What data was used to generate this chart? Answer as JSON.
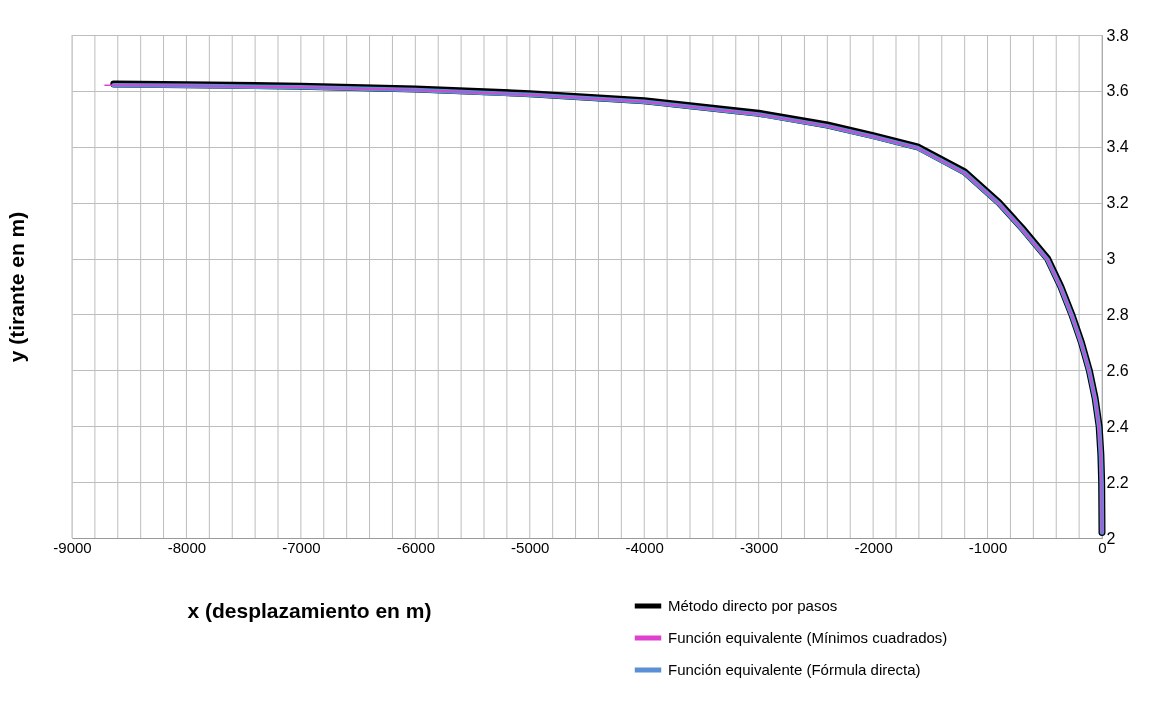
{
  "chart_data": {
    "type": "line",
    "xlabel": "x (desplazamiento en m)",
    "ylabel": "y (tirante en m)",
    "xlim": [
      -9000,
      0
    ],
    "xticks": [
      -9000,
      {
        "value": -8800,
        "label": null
      },
      {
        "value": -8600,
        "label": null
      },
      {
        "value": -8400,
        "label": null
      },
      {
        "value": -8200,
        "label": null
      },
      -8000,
      {
        "value": -7800,
        "label": null
      },
      {
        "value": -7600,
        "label": null
      },
      {
        "value": -7400,
        "label": null
      },
      {
        "value": -7200,
        "label": null
      },
      -7000,
      {
        "value": -6800,
        "label": null
      },
      {
        "value": -6600,
        "label": null
      },
      {
        "value": -6400,
        "label": null
      },
      {
        "value": -6200,
        "label": null
      },
      -6000,
      {
        "value": -5800,
        "label": null
      },
      {
        "value": -5600,
        "label": null
      },
      {
        "value": -5400,
        "label": null
      },
      {
        "value": -5200,
        "label": null
      },
      -5000,
      {
        "value": -4800,
        "label": null
      },
      {
        "value": -4600,
        "label": null
      },
      {
        "value": -4400,
        "label": null
      },
      {
        "value": -4200,
        "label": null
      },
      -4000,
      {
        "value": -3800,
        "label": null
      },
      {
        "value": -3600,
        "label": null
      },
      {
        "value": -3400,
        "label": null
      },
      {
        "value": -3200,
        "label": null
      },
      -3000,
      {
        "value": -2800,
        "label": null
      },
      {
        "value": -2600,
        "label": null
      },
      {
        "value": -2400,
        "label": null
      },
      {
        "value": -2200,
        "label": null
      },
      -2000,
      {
        "value": -1800,
        "label": null
      },
      {
        "value": -1600,
        "label": null
      },
      {
        "value": -1400,
        "label": null
      },
      {
        "value": -1200,
        "label": null
      },
      -1000,
      {
        "value": -800,
        "label": null
      },
      {
        "value": -600,
        "label": null
      },
      {
        "value": -400,
        "label": null
      },
      {
        "value": -200,
        "label": null
      },
      0
    ],
    "ylim": [
      2,
      3.8
    ],
    "yticks": [
      2,
      2.2,
      2.4,
      2.6,
      2.8,
      3,
      3.2,
      3.4,
      3.6,
      3.8
    ],
    "grid": true,
    "legend": "bottom right",
    "marker": "none",
    "line_style": "solid",
    "series": [
      {
        "name": "Método directo por pasos",
        "color": "#000000",
        "x": [
          -8635,
          -8000,
          -7000,
          -6000,
          -5000,
          -4000,
          -3000,
          -2400,
          -2000,
          -1612,
          -1200,
          -900,
          -700,
          -476,
          -360,
          -264,
          -180,
          -111,
          -60,
          -25,
          -10,
          -3,
          0
        ],
        "values": [
          3.625,
          3.622,
          3.617,
          3.607,
          3.59,
          3.565,
          3.52,
          3.478,
          3.44,
          3.4,
          3.31,
          3.2,
          3.11,
          3.0,
          2.9,
          2.8,
          2.7,
          2.6,
          2.5,
          2.4,
          2.3,
          2.2,
          2.02
        ]
      },
      {
        "name": "Función equivalente (Mínimos cuadrados)",
        "color": "#e040d0",
        "x": [
          -8712,
          -8000,
          -7000,
          -6000,
          -5000,
          -4000,
          -3000,
          -2400,
          -2000,
          -1612,
          -1200,
          -900,
          -700,
          -476,
          -360,
          -264,
          -180,
          -111,
          -60,
          -25,
          -10,
          -3,
          0
        ],
        "values": [
          3.62,
          3.618,
          3.613,
          3.603,
          3.586,
          3.561,
          3.516,
          3.474,
          3.436,
          3.396,
          3.306,
          3.196,
          3.106,
          2.996,
          2.896,
          2.796,
          2.696,
          2.596,
          2.496,
          2.396,
          2.296,
          2.196,
          2.02
        ]
      },
      {
        "name": "Función equivalente (Fórmula directa)",
        "color": "#5b8fd6",
        "x": [
          -8635,
          -8000,
          -7000,
          -6000,
          -5000,
          -4000,
          -3000,
          -2400,
          -2000,
          -1612,
          -1200,
          -900,
          -700,
          -476,
          -360,
          -264,
          -180,
          -111,
          -60,
          -25,
          -10,
          -3,
          0
        ],
        "values": [
          3.62,
          3.618,
          3.613,
          3.603,
          3.586,
          3.561,
          3.516,
          3.474,
          3.436,
          3.396,
          3.306,
          3.196,
          3.106,
          2.996,
          2.896,
          2.796,
          2.696,
          2.596,
          2.496,
          2.396,
          2.296,
          2.196,
          2.02
        ]
      }
    ]
  }
}
